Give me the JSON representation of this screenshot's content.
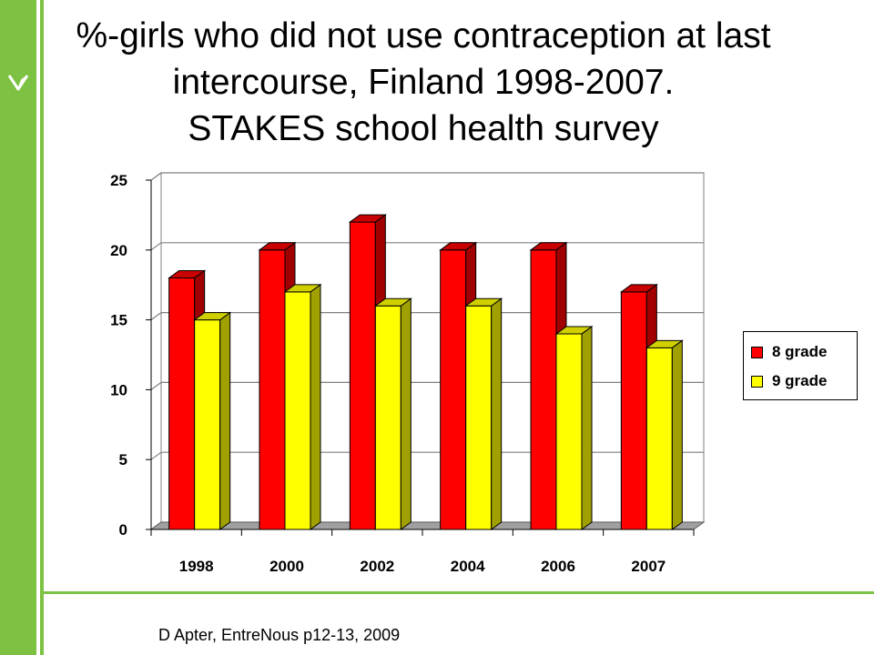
{
  "slide": {
    "title_lines": [
      "%-girls who did not use contraception at last",
      "intercourse,  Finland 1998-2007.",
      "STAKES school health survey"
    ],
    "source": "D Apter,  EntreNous p12-13, 2009",
    "colors": {
      "sidebar_green": "#7dc242",
      "stripe_green": "#7dc242",
      "footer_green": "#7dc242"
    },
    "logo_icon": "leaf-logo-icon"
  },
  "chart_data": {
    "type": "bar",
    "style": "3d-clustered-column",
    "title": "",
    "xlabel": "",
    "ylabel": "",
    "categories": [
      "1998",
      "2000",
      "2002",
      "2004",
      "2006",
      "2007"
    ],
    "series": [
      {
        "name": "8 grade",
        "values": [
          18,
          20,
          22,
          20,
          20,
          17
        ],
        "color": "#ff0000",
        "side_color": "#a00000",
        "top_color": "#c80000"
      },
      {
        "name": "9 grade",
        "values": [
          15,
          17,
          16,
          16,
          14,
          13
        ],
        "color": "#ffff00",
        "side_color": "#a0a000",
        "top_color": "#d0d000"
      }
    ],
    "yticks": [
      "0",
      "5",
      "10",
      "15",
      "20",
      "25"
    ],
    "ylim": [
      0,
      25
    ],
    "grid": true,
    "legend": "right"
  }
}
